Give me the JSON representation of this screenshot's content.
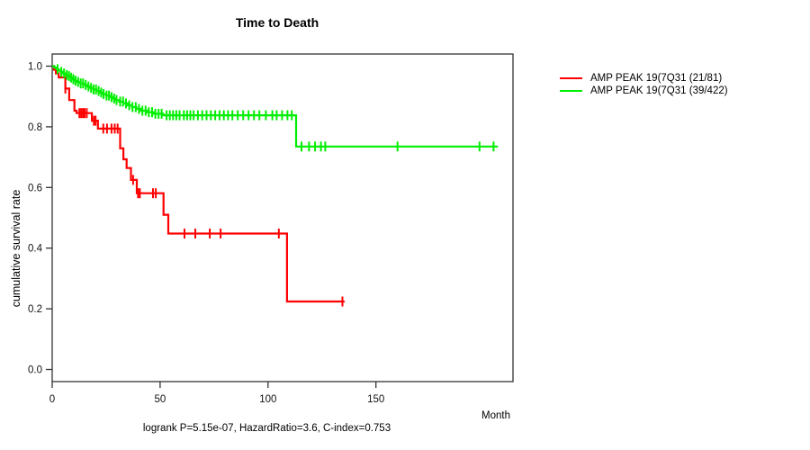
{
  "chart_data": {
    "type": "line",
    "subtype": "kaplan-meier-step",
    "title": "Time to Death",
    "xlabel": "Month",
    "ylabel": "cumulative survival rate",
    "footer": "logrank P=5.15e-07, HazardRatio=3.6, C-index=0.753",
    "xlim": [
      0,
      213.5
    ],
    "ylim": [
      -0.04,
      1.04
    ],
    "x_ticks": [
      0,
      50,
      100,
      150
    ],
    "y_ticks": [
      0.0,
      0.2,
      0.4,
      0.6,
      0.8,
      1.0
    ],
    "grid": false,
    "legend_position": "outside-top-right",
    "axis_color": "#333333",
    "series": [
      {
        "name": "AMP PEAK 19(7Q31 (21/81)",
        "color": "#ff0000",
        "end_month": 135.5,
        "steps": [
          [
            0,
            1.0
          ],
          [
            0.8,
            0.988
          ],
          [
            1.7,
            0.976
          ],
          [
            3.0,
            0.963
          ],
          [
            6.1,
            0.926
          ],
          [
            7.9,
            0.888
          ],
          [
            10.3,
            0.853
          ],
          [
            11.3,
            0.845
          ],
          [
            18.4,
            0.82
          ],
          [
            21.2,
            0.794
          ],
          [
            31.5,
            0.729
          ],
          [
            33.0,
            0.693
          ],
          [
            34.5,
            0.664
          ],
          [
            36.5,
            0.625
          ],
          [
            39.2,
            0.581
          ],
          [
            51.6,
            0.51
          ],
          [
            53.8,
            0.448
          ],
          [
            108.8,
            0.224
          ]
        ],
        "censor_months": [
          6.1,
          12.6,
          13.4,
          14.2,
          15.0,
          16.0,
          19.3,
          20.1,
          23.7,
          25.4,
          27.5,
          29.0,
          30.3,
          37.5,
          39.8,
          40.6,
          46.7,
          48.0,
          61.3,
          66.3,
          73.0,
          78.0,
          105.0,
          134.5
        ]
      },
      {
        "name": "AMP PEAK 19(7Q31 (39/422)",
        "color": "#00ee00",
        "end_month": 206.5,
        "steps": [
          [
            0,
            1.0
          ],
          [
            1,
            0.995
          ],
          [
            2,
            0.99
          ],
          [
            3,
            0.985
          ],
          [
            4,
            0.981
          ],
          [
            5,
            0.976
          ],
          [
            6,
            0.971
          ],
          [
            7,
            0.967
          ],
          [
            8,
            0.962
          ],
          [
            9,
            0.957
          ],
          [
            10,
            0.952
          ],
          [
            11.5,
            0.948
          ],
          [
            13,
            0.943
          ],
          [
            14.5,
            0.938
          ],
          [
            16,
            0.933
          ],
          [
            17.5,
            0.928
          ],
          [
            19,
            0.923
          ],
          [
            20.5,
            0.918
          ],
          [
            22,
            0.913
          ],
          [
            23.5,
            0.908
          ],
          [
            25,
            0.903
          ],
          [
            26.5,
            0.898
          ],
          [
            28,
            0.893
          ],
          [
            29.5,
            0.888
          ],
          [
            31,
            0.883
          ],
          [
            33,
            0.877
          ],
          [
            35,
            0.871
          ],
          [
            37,
            0.865
          ],
          [
            39,
            0.859
          ],
          [
            41,
            0.853
          ],
          [
            44,
            0.848
          ],
          [
            47,
            0.843
          ],
          [
            51.5,
            0.838
          ],
          [
            113.0,
            0.735
          ]
        ],
        "censor_months": [
          2.5,
          4.2,
          5.5,
          6.8,
          7.8,
          8.8,
          9.8,
          10.8,
          12,
          13.2,
          14.3,
          15.5,
          16.8,
          18,
          19.2,
          20.3,
          21.5,
          22.7,
          23.8,
          25.2,
          26.3,
          27.5,
          28.7,
          29.8,
          31.5,
          32.8,
          34.2,
          35.7,
          37.2,
          38.7,
          40.2,
          41.8,
          43.3,
          44.8,
          46.3,
          47.8,
          49.3,
          50.7,
          53,
          54.5,
          56,
          57.5,
          59,
          61,
          62.5,
          64,
          65.5,
          67.5,
          69.5,
          71.5,
          73.5,
          75.5,
          77.5,
          79.5,
          81.5,
          83.5,
          86,
          88.5,
          91,
          93.5,
          96,
          99,
          102,
          104,
          106.5,
          109,
          111,
          115.5,
          119,
          121.8,
          124.5,
          126.5,
          160,
          198,
          204.5
        ]
      }
    ]
  }
}
